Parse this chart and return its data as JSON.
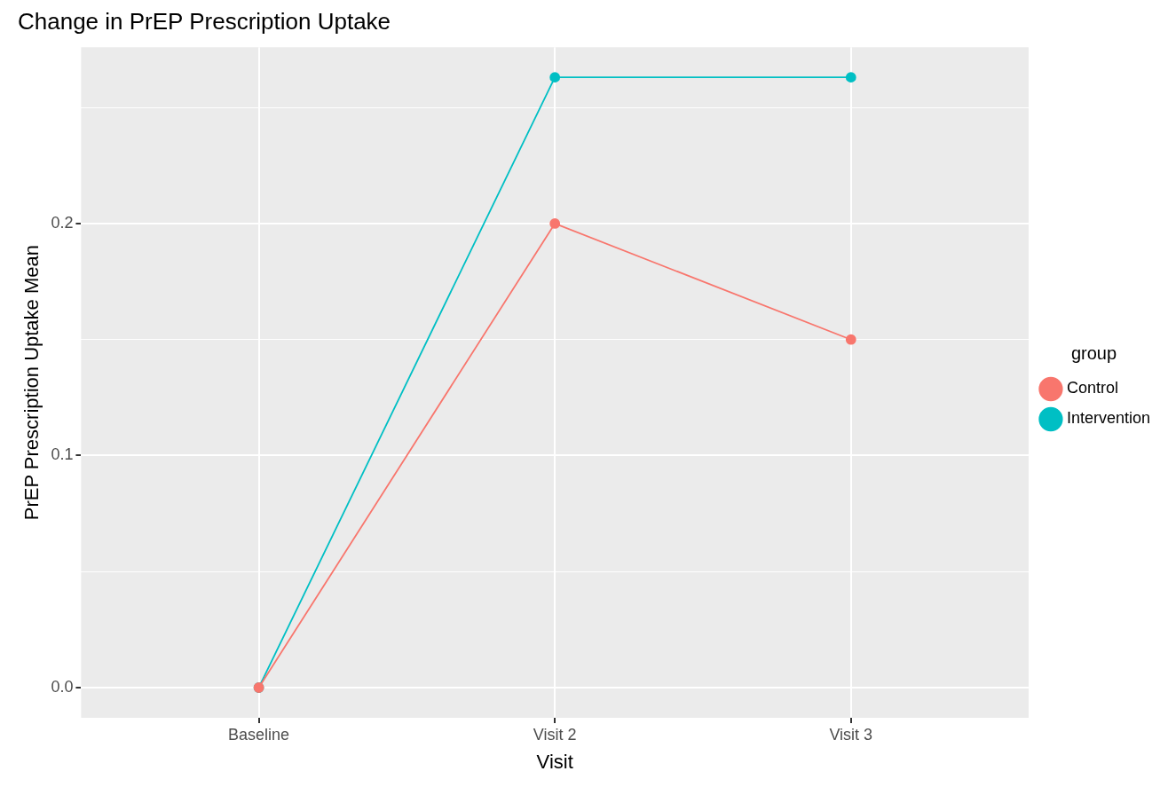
{
  "chart_data": {
    "type": "line",
    "title": "Change in PrEP Prescription Uptake",
    "xlabel": "Visit",
    "ylabel": "PrEP Prescription Uptake Mean",
    "legend_title": "group",
    "categories": [
      "Baseline",
      "Visit 2",
      "Visit 3"
    ],
    "series": [
      {
        "name": "Control",
        "color": "#f8766d",
        "values": [
          0,
          0.2,
          0.15
        ]
      },
      {
        "name": "Intervention",
        "color": "#00bfc4",
        "values": [
          0,
          0.263,
          0.263
        ]
      }
    ],
    "ylim": [
      -0.013,
      0.276
    ],
    "yticks": [
      {
        "value": 0,
        "label": "0.0"
      },
      {
        "value": 0.05,
        "label": null
      },
      {
        "value": 0.1,
        "label": "0.1"
      },
      {
        "value": 0.15,
        "label": null
      },
      {
        "value": 0.2,
        "label": "0.2"
      },
      {
        "value": 0.25,
        "label": null
      }
    ],
    "grid": true,
    "legend": "right",
    "marker": "circle",
    "line_style": "solid"
  }
}
